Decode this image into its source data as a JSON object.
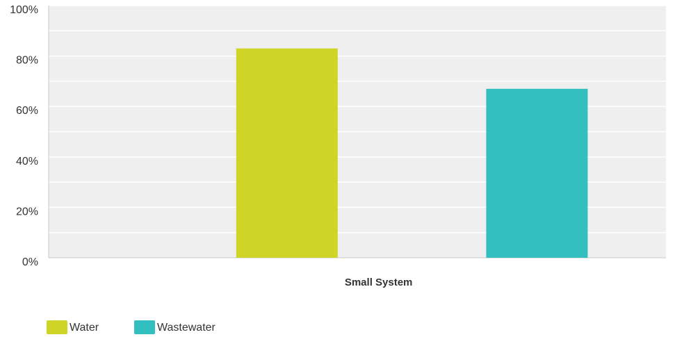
{
  "chart_data": {
    "type": "bar",
    "categories": [
      "Small System"
    ],
    "series": [
      {
        "name": "Water",
        "values": [
          83
        ],
        "color": "#cfd527"
      },
      {
        "name": "Wastewater",
        "values": [
          67
        ],
        "color": "#33bfc0"
      }
    ],
    "ylim": [
      0,
      100
    ],
    "yticks": [
      0,
      20,
      40,
      60,
      80,
      100
    ],
    "ytick_labels": [
      "0%",
      "20%",
      "40%",
      "60%",
      "80%",
      "100%"
    ],
    "grid": true,
    "legend": "bottom-left",
    "colors": {
      "plot_background": "#efefef",
      "gridline": "#ffffff",
      "axis": "#c8c8c8",
      "text": "#333333"
    }
  }
}
